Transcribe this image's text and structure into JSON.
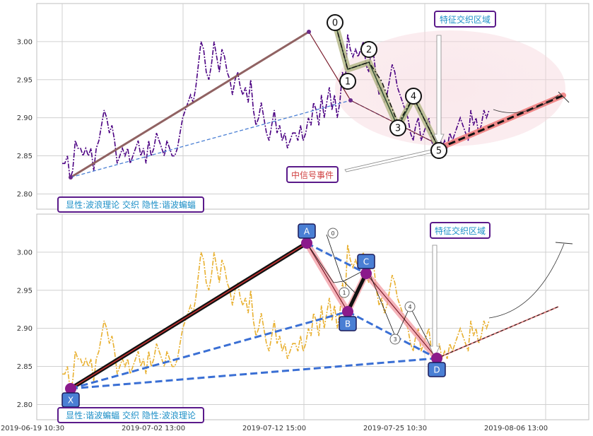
{
  "chart_data": [
    {
      "type": "line",
      "panel": "top",
      "title": "",
      "xlabel": "",
      "ylabel": "",
      "ylim": [
        2.78,
        3.05
      ],
      "yticks": [
        "2.80",
        "2.85",
        "2.90",
        "2.95",
        "3.00"
      ],
      "grid": true,
      "price_color": "#4b0082",
      "price_style": "dash-dot",
      "series": [
        {
          "values": [
            2.84,
            2.84,
            2.85,
            2.82,
            2.83,
            2.87,
            2.86,
            2.86,
            2.85,
            2.86,
            2.85,
            2.86,
            2.83,
            2.86,
            2.87,
            2.89,
            2.91,
            2.9,
            2.88,
            2.89,
            2.87,
            2.84,
            2.85,
            2.86,
            2.85,
            2.86,
            2.84,
            2.85,
            2.86,
            2.87,
            2.85,
            2.86,
            2.84,
            2.87,
            2.85,
            2.86,
            2.88,
            2.87,
            2.86,
            2.85,
            2.87,
            2.86,
            2.85,
            2.85,
            2.86,
            2.88,
            2.9,
            2.91,
            2.92,
            2.93,
            2.92,
            2.94,
            2.97,
            3.0,
            2.99,
            2.96,
            2.95,
            2.97,
            3.0,
            2.98,
            2.96,
            2.99,
            2.98,
            2.96,
            2.95,
            2.93,
            2.95,
            2.96,
            2.94,
            2.93,
            2.94,
            2.92,
            2.95,
            2.91,
            2.89,
            2.9,
            2.92,
            2.9,
            2.88,
            2.87,
            2.89,
            2.91,
            2.88,
            2.89,
            2.87,
            2.88,
            2.86,
            2.87,
            2.88,
            2.88,
            2.87,
            2.89,
            2.87,
            2.88,
            2.9,
            2.89,
            2.92,
            2.91,
            2.89,
            2.93,
            2.9,
            2.92,
            2.94,
            2.91,
            2.93,
            2.9,
            2.92,
            2.96,
            2.94,
            3.01,
            2.99,
            2.98,
            2.99,
            2.98,
            2.99,
            3.0,
            2.97,
            2.96,
            2.99,
            2.98,
            2.95,
            2.93,
            2.94,
            2.92,
            2.93,
            2.95,
            2.97,
            2.96,
            2.94,
            2.93,
            2.92,
            2.91,
            2.9,
            2.88,
            2.87,
            2.89,
            2.9,
            2.87,
            2.88,
            2.89,
            2.9,
            2.87,
            2.86,
            2.87,
            2.88,
            2.86,
            2.87,
            2.86,
            2.88,
            2.87,
            2.88,
            2.89,
            2.9,
            2.89,
            2.88,
            2.87,
            2.91,
            2.89,
            2.9,
            2.88,
            2.89,
            2.91,
            2.9,
            2.91
          ]
        }
      ],
      "wave_points": {
        "labels": [
          "0",
          "1",
          "2",
          "3",
          "4",
          "5"
        ],
        "y": [
          3.01,
          2.92,
          2.97,
          2.88,
          2.92,
          2.86
        ]
      },
      "trend_lines": [
        {
          "from_y": 2.82,
          "to_y": 3.01,
          "color": "#8b5a5a"
        },
        {
          "from_y": 2.82,
          "to_y": 2.92,
          "color": "#4a7fd4",
          "style": "dashed"
        }
      ],
      "annotations": {
        "zone_label": "特征交织区域",
        "signal_label": "中信号事件",
        "legend_label": "显性:波浪理论 交织 隐性:谐波蝙蝠"
      }
    },
    {
      "type": "line",
      "panel": "bottom",
      "title": "",
      "xlabel": "",
      "ylabel": "",
      "ylim": [
        2.78,
        3.05
      ],
      "yticks": [
        "2.80",
        "2.85",
        "2.90",
        "2.95",
        "3.00"
      ],
      "xticks": [
        "2019-06-19 10:30",
        "2019-07-02 13:00",
        "2019-07-12 15:00",
        "2019-07-25 10:30",
        "2019-08-06 13:00"
      ],
      "grid": true,
      "price_color": "#e8b030",
      "price_style": "dash-dot",
      "harmonic_points": {
        "labels": [
          "X",
          "A",
          "B",
          "C",
          "D"
        ],
        "y": [
          2.82,
          3.01,
          2.92,
          2.97,
          2.86
        ]
      },
      "wave_points": {
        "labels": [
          "0",
          "1",
          "2",
          "3",
          "4"
        ],
        "y": [
          3.02,
          2.94,
          2.96,
          2.88,
          2.92
        ]
      },
      "annotations": {
        "zone_label": "特征交织区域",
        "legend_label": "显性:谐波蝙蝠 交织 隐性:波浪理论"
      }
    }
  ]
}
